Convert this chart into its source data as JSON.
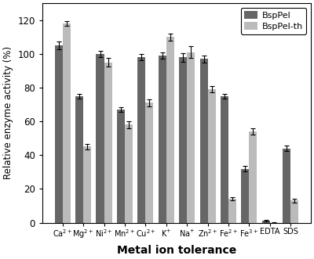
{
  "categories": [
    "Ca$^{2+}$",
    "Mg$^{2+}$",
    "Ni$^{2+}$",
    "Mn$^{2+}$",
    "Cu$^{2+}$",
    "K$^{+}$",
    "Na$^{+}$",
    "Zn$^{2+}$",
    "Fe$^{2+}$",
    "Fe$^{3+}$",
    "EDTA",
    "SDS"
  ],
  "bsppel": [
    105,
    75,
    100,
    67,
    98,
    99,
    98,
    97,
    75,
    32,
    1,
    44
  ],
  "bsppel_th": [
    118,
    45,
    95,
    58,
    71,
    110,
    101,
    79,
    14,
    54,
    0,
    13
  ],
  "bsppel_err": [
    2.5,
    1.5,
    2.0,
    1.5,
    2.0,
    2.0,
    2.5,
    2.0,
    1.5,
    1.5,
    0.5,
    1.5
  ],
  "bsppel_th_err": [
    1.5,
    1.5,
    2.5,
    2.0,
    2.0,
    2.0,
    3.5,
    2.0,
    1.0,
    2.0,
    0.3,
    1.0
  ],
  "color_bsppel": "#666666",
  "color_bsppel_th": "#bbbbbb",
  "ylabel": "Relative enzyme activity (%)",
  "xlabel": "Metal ion tolerance",
  "ylim": [
    0,
    130
  ],
  "yticks": [
    0,
    20,
    40,
    60,
    80,
    100,
    120
  ],
  "legend_labels": [
    "BspPel",
    "BspPel-th"
  ],
  "bar_width": 0.38,
  "figsize": [
    4.0,
    3.31
  ],
  "dpi": 100
}
